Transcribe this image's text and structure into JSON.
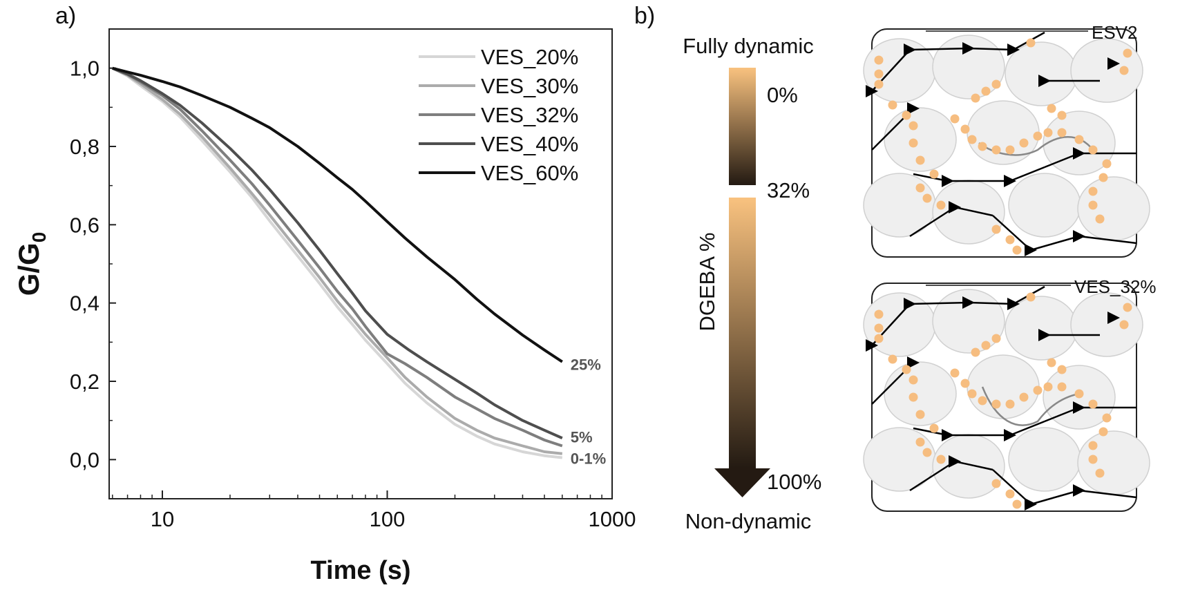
{
  "panel_labels": {
    "a": "a)",
    "b": "b)"
  },
  "chart_data": {
    "type": "line",
    "title": "",
    "xlabel": "Time (s)",
    "ylabel_main": "G/G",
    "ylabel_sub": "0",
    "xscale": "log",
    "xlim": [
      5.8,
      1000
    ],
    "ylim": [
      -0.1,
      1.1
    ],
    "xticks": [
      10,
      100,
      1000
    ],
    "xtick_labels": [
      "10",
      "100",
      "1000"
    ],
    "yticks": [
      0.0,
      0.2,
      0.4,
      0.6,
      0.8,
      1.0
    ],
    "ytick_labels": [
      "0,0",
      "0,2",
      "0,4",
      "0,6",
      "0,8",
      "1,0"
    ],
    "legend_position": "top-right",
    "series": [
      {
        "name": "VES_20%",
        "color": "#d6d6d6",
        "points": [
          [
            6,
            1.0
          ],
          [
            7,
            0.98
          ],
          [
            8,
            0.955
          ],
          [
            10,
            0.915
          ],
          [
            12,
            0.875
          ],
          [
            15,
            0.815
          ],
          [
            20,
            0.735
          ],
          [
            25,
            0.67
          ],
          [
            30,
            0.61
          ],
          [
            40,
            0.52
          ],
          [
            50,
            0.45
          ],
          [
            60,
            0.39
          ],
          [
            70,
            0.345
          ],
          [
            80,
            0.305
          ],
          [
            100,
            0.245
          ],
          [
            120,
            0.195
          ],
          [
            150,
            0.145
          ],
          [
            200,
            0.09
          ],
          [
            250,
            0.06
          ],
          [
            300,
            0.04
          ],
          [
            400,
            0.02
          ],
          [
            500,
            0.01
          ],
          [
            600,
            0.005
          ]
        ]
      },
      {
        "name": "VES_30%",
        "color": "#ababab",
        "points": [
          [
            6,
            1.0
          ],
          [
            7,
            0.982
          ],
          [
            8,
            0.96
          ],
          [
            10,
            0.92
          ],
          [
            12,
            0.882
          ],
          [
            15,
            0.825
          ],
          [
            20,
            0.745
          ],
          [
            25,
            0.68
          ],
          [
            30,
            0.625
          ],
          [
            40,
            0.535
          ],
          [
            50,
            0.465
          ],
          [
            60,
            0.405
          ],
          [
            70,
            0.36
          ],
          [
            80,
            0.32
          ],
          [
            100,
            0.26
          ],
          [
            120,
            0.21
          ],
          [
            150,
            0.16
          ],
          [
            200,
            0.105
          ],
          [
            250,
            0.075
          ],
          [
            300,
            0.055
          ],
          [
            400,
            0.035
          ],
          [
            500,
            0.02
          ],
          [
            600,
            0.015
          ]
        ]
      },
      {
        "name": "VES_32%",
        "color": "#7e7e7e",
        "points": [
          [
            6,
            1.0
          ],
          [
            7,
            0.984
          ],
          [
            8,
            0.965
          ],
          [
            10,
            0.93
          ],
          [
            12,
            0.895
          ],
          [
            15,
            0.84
          ],
          [
            20,
            0.765
          ],
          [
            25,
            0.705
          ],
          [
            30,
            0.65
          ],
          [
            40,
            0.56
          ],
          [
            50,
            0.49
          ],
          [
            60,
            0.43
          ],
          [
            70,
            0.385
          ],
          [
            80,
            0.34
          ],
          [
            100,
            0.27
          ],
          [
            120,
            0.245
          ],
          [
            150,
            0.21
          ],
          [
            200,
            0.16
          ],
          [
            250,
            0.13
          ],
          [
            300,
            0.105
          ],
          [
            400,
            0.075
          ],
          [
            500,
            0.05
          ],
          [
            600,
            0.035
          ]
        ]
      },
      {
        "name": "VES_40%",
        "color": "#4e4e4e",
        "points": [
          [
            6,
            1.0
          ],
          [
            7,
            0.985
          ],
          [
            8,
            0.968
          ],
          [
            10,
            0.935
          ],
          [
            12,
            0.905
          ],
          [
            15,
            0.86
          ],
          [
            20,
            0.795
          ],
          [
            25,
            0.74
          ],
          [
            30,
            0.69
          ],
          [
            40,
            0.605
          ],
          [
            50,
            0.535
          ],
          [
            60,
            0.475
          ],
          [
            70,
            0.425
          ],
          [
            80,
            0.38
          ],
          [
            100,
            0.32
          ],
          [
            125,
            0.28
          ],
          [
            150,
            0.25
          ],
          [
            200,
            0.205
          ],
          [
            250,
            0.17
          ],
          [
            300,
            0.14
          ],
          [
            400,
            0.1
          ],
          [
            500,
            0.075
          ],
          [
            600,
            0.055
          ]
        ]
      },
      {
        "name": "VES_60%",
        "color": "#111111",
        "points": [
          [
            6,
            1.0
          ],
          [
            7,
            0.99
          ],
          [
            8,
            0.982
          ],
          [
            10,
            0.966
          ],
          [
            12,
            0.952
          ],
          [
            15,
            0.93
          ],
          [
            20,
            0.9
          ],
          [
            25,
            0.872
          ],
          [
            30,
            0.848
          ],
          [
            40,
            0.8
          ],
          [
            50,
            0.757
          ],
          [
            60,
            0.72
          ],
          [
            70,
            0.69
          ],
          [
            80,
            0.66
          ],
          [
            100,
            0.608
          ],
          [
            120,
            0.566
          ],
          [
            150,
            0.518
          ],
          [
            200,
            0.46
          ],
          [
            250,
            0.41
          ],
          [
            300,
            0.372
          ],
          [
            400,
            0.318
          ],
          [
            500,
            0.28
          ],
          [
            600,
            0.25
          ]
        ]
      }
    ],
    "annotations": [
      {
        "text": "25%",
        "x": 600,
        "y": 0.245,
        "color": "#555555"
      },
      {
        "text": "5%",
        "x": 600,
        "y": 0.06,
        "color": "#555555"
      },
      {
        "text": "0-1%",
        "x": 600,
        "y": 0.005,
        "color": "#555555"
      }
    ]
  },
  "gradient_bar": {
    "top_label": "Fully dynamic",
    "bottom_label": "Non-dynamic",
    "axis_label": "DGEBA %",
    "mark_0": "0%",
    "mark_32": "32%",
    "mark_100": "100%",
    "color_top": "#f9c27f",
    "color_bottom": "#231a12"
  },
  "network_panels": [
    {
      "label": "ESV2"
    },
    {
      "label": "VES_32%"
    }
  ],
  "colors": {
    "node_orange": "#f6bd80",
    "junction": "#000000",
    "cell_fill": "#efefef"
  }
}
